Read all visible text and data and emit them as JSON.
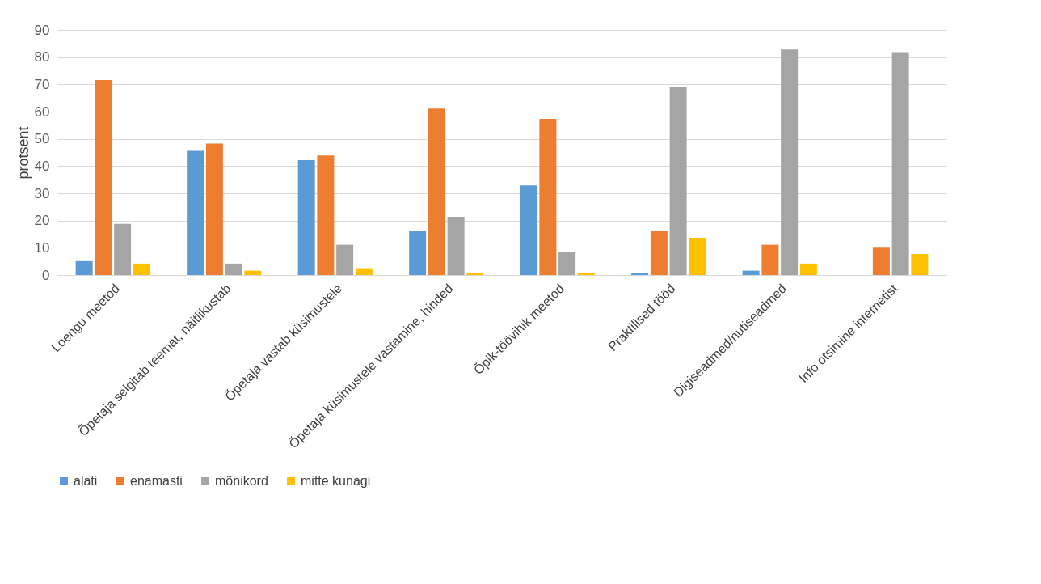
{
  "chart_data": {
    "type": "bar",
    "ylabel": "protsent",
    "categories": [
      "Loengu meetod",
      "Õpetaja selgitab teemat, näitlikustab",
      "Õpetaja vastab küsimustele",
      "Õpetaja küsimustele vastamine, hinded",
      "Õpik-töövihik meetod",
      "Praktilised tööd",
      "Digiseadmed/nutiseadmed",
      "Info otsimine internetist"
    ],
    "series": [
      {
        "name": "alati",
        "color": "#5b9bd5",
        "values": [
          5.1,
          45.6,
          42.2,
          16.2,
          32.9,
          0.7,
          1.6,
          null
        ]
      },
      {
        "name": "enamasti",
        "color": "#ed7d31",
        "values": [
          71.6,
          48.3,
          43.9,
          61.1,
          57.3,
          16.2,
          11.1,
          10.3
        ]
      },
      {
        "name": "mõnikord",
        "color": "#a5a5a5",
        "values": [
          18.8,
          4.2,
          11.1,
          21.4,
          8.5,
          69.0,
          82.8,
          81.8
        ]
      },
      {
        "name": "mitte kunagi",
        "color": "#ffc000",
        "values": [
          4.2,
          1.6,
          2.5,
          0.7,
          0.7,
          13.7,
          4.2,
          7.7
        ]
      }
    ],
    "ylim": [
      0,
      90
    ],
    "yticks": [
      0,
      10,
      20,
      30,
      40,
      50,
      60,
      70,
      80,
      90
    ],
    "grid": "y",
    "legend": "bottom"
  }
}
